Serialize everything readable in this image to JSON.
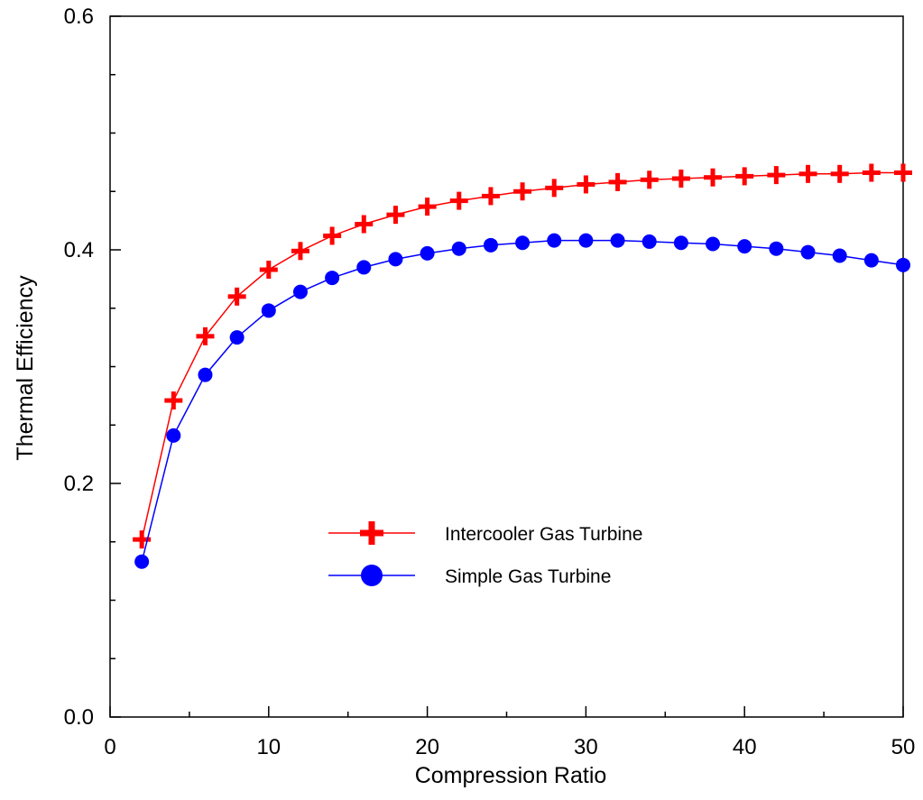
{
  "chart_data": {
    "type": "line",
    "title": "",
    "xlabel": "Compression Ratio",
    "ylabel": "Thermal Efficiency",
    "xlim": [
      0,
      50
    ],
    "ylim": [
      0.0,
      0.6
    ],
    "x_ticks": [
      0,
      10,
      20,
      30,
      40,
      50
    ],
    "x_tick_labels": [
      "0",
      "10",
      "20",
      "30",
      "40",
      "50"
    ],
    "y_ticks": [
      0.0,
      0.2,
      0.4,
      0.6
    ],
    "y_tick_labels": [
      "0.0",
      "0.2",
      "0.4",
      "0.6"
    ],
    "grid": false,
    "legend_position": "center-right",
    "x": [
      2,
      4,
      6,
      8,
      10,
      12,
      14,
      16,
      18,
      20,
      22,
      24,
      26,
      28,
      30,
      32,
      34,
      36,
      38,
      40,
      42,
      44,
      46,
      48,
      50
    ],
    "series": [
      {
        "name": "Intercooler Gas Turbine",
        "color": "#ff0000",
        "marker": "plus",
        "values": [
          0.152,
          0.271,
          0.326,
          0.36,
          0.383,
          0.399,
          0.412,
          0.422,
          0.43,
          0.437,
          0.442,
          0.446,
          0.45,
          0.453,
          0.456,
          0.458,
          0.46,
          0.461,
          0.462,
          0.463,
          0.464,
          0.465,
          0.465,
          0.466,
          0.466
        ]
      },
      {
        "name": "Simple Gas Turbine",
        "color": "#0000ff",
        "marker": "circle",
        "values": [
          0.133,
          0.241,
          0.293,
          0.325,
          0.348,
          0.364,
          0.376,
          0.385,
          0.392,
          0.397,
          0.401,
          0.404,
          0.406,
          0.408,
          0.408,
          0.408,
          0.407,
          0.406,
          0.405,
          0.403,
          0.401,
          0.398,
          0.395,
          0.391,
          0.387
        ]
      }
    ]
  }
}
